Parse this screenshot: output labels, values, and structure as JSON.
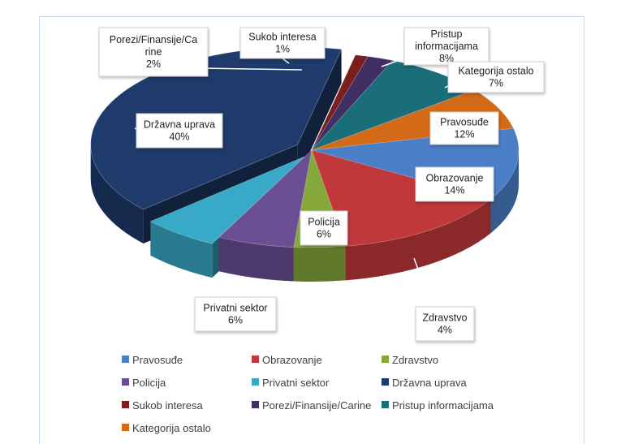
{
  "chart_data": {
    "type": "pie",
    "title": "",
    "slices": [
      {
        "key": "pravosude",
        "name": "Pravosuđe",
        "value": 12,
        "label": "12%",
        "color": "#4a7ec7"
      },
      {
        "key": "obrazovanje",
        "name": "Obrazovanje",
        "value": 14,
        "label": "14%",
        "color": "#c0383a"
      },
      {
        "key": "zdravstvo",
        "name": "Zdravstvo",
        "value": 4,
        "label": "4%",
        "color": "#86a83b"
      },
      {
        "key": "policija",
        "name": "Policija",
        "value": 6,
        "label": "6%",
        "color": "#6b4f95"
      },
      {
        "key": "privatni",
        "name": "Privatni sektor",
        "value": 6,
        "label": "6%",
        "color": "#38a9c6"
      },
      {
        "key": "drzavna",
        "name": "Državna uprava",
        "value": 40,
        "label": "40%",
        "color": "#1f3b6b"
      },
      {
        "key": "sukob",
        "name": "Sukob interesa",
        "value": 1,
        "label": "1%",
        "color": "#7a1e1e"
      },
      {
        "key": "porezi",
        "name": "Porezi/Finansije/Carine",
        "value": 2,
        "label": "2%",
        "color": "#3f2f63"
      },
      {
        "key": "pristup",
        "name": "Pristup informacijama",
        "value": 8,
        "label": "8%",
        "color": "#1a6e7a"
      },
      {
        "key": "kategorija",
        "name": "Kategorija ostalo",
        "value": 7,
        "label": "7%",
        "color": "#d26a18"
      }
    ],
    "callouts": {
      "pravosude": [
        "Pravosuđe",
        "12%"
      ],
      "obrazovanje": [
        "Obrazovanje",
        "14%"
      ],
      "zdravstvo": [
        "Zdravstvo",
        "4%"
      ],
      "policija": [
        "Policija",
        "6%"
      ],
      "privatni": [
        "Privatni sektor",
        "6%"
      ],
      "drzavna": [
        "Državna uprava",
        "40%"
      ],
      "sukob": [
        "Sukob interesa",
        "1%"
      ],
      "porezi": [
        "Porezi/Finansije/Ca",
        "rine",
        "2%"
      ],
      "pristup": [
        "Pristup",
        "informacijama",
        "8%"
      ],
      "kategorija": [
        "Kategorija ostalo",
        "7%"
      ]
    },
    "legend": [
      "Pravosuđe",
      "Obrazovanje",
      "Zdravstvo",
      "Policija",
      "Privatni sektor",
      "Državna uprava",
      "Sukob interesa",
      "Porezi/Finansije/Carine",
      "Pristup informacijama",
      "Kategorija ostalo"
    ],
    "legend_placement": "bottom",
    "style": "3d-exploded"
  }
}
